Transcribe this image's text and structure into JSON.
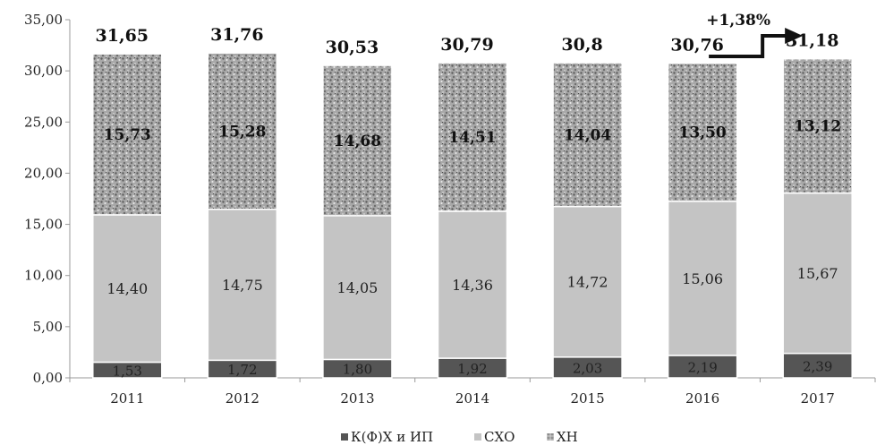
{
  "chart_data": {
    "type": "bar",
    "stacked": true,
    "categories": [
      "2011",
      "2012",
      "2013",
      "2014",
      "2015",
      "2016",
      "2017"
    ],
    "series": [
      {
        "name": "К(Ф)Х и ИП",
        "values": [
          1.53,
          1.72,
          1.8,
          1.92,
          2.03,
          2.19,
          2.39
        ],
        "labels": [
          "1,53",
          "1,72",
          "1,80",
          "1,92",
          "2,03",
          "2,19",
          "2,39"
        ],
        "color": "#555555"
      },
      {
        "name": "СХО",
        "values": [
          14.4,
          14.75,
          14.05,
          14.36,
          14.72,
          15.06,
          15.67
        ],
        "labels": [
          "14,40",
          "14,75",
          "14,05",
          "14,36",
          "14,72",
          "15,06",
          "15,67"
        ],
        "color": "#c4c4c4"
      },
      {
        "name": "ХН",
        "values": [
          15.73,
          15.28,
          14.68,
          14.51,
          14.04,
          13.5,
          13.12
        ],
        "labels": [
          "15,73",
          "15,28",
          "14,68",
          "14,51",
          "14,04",
          "13,50",
          "13,12"
        ],
        "color": "#9a9a9a"
      }
    ],
    "totals": [
      "31,65",
      "31,76",
      "30,53",
      "30,79",
      "30,8",
      "30,76",
      "31,18"
    ],
    "ylim": [
      0,
      35
    ],
    "yticks": [
      "0,00",
      "5,00",
      "10,00",
      "15,00",
      "20,00",
      "25,00",
      "30,00",
      "35,00"
    ],
    "annotation": "+1,38%",
    "legend_position": "bottom",
    "grid": false
  }
}
